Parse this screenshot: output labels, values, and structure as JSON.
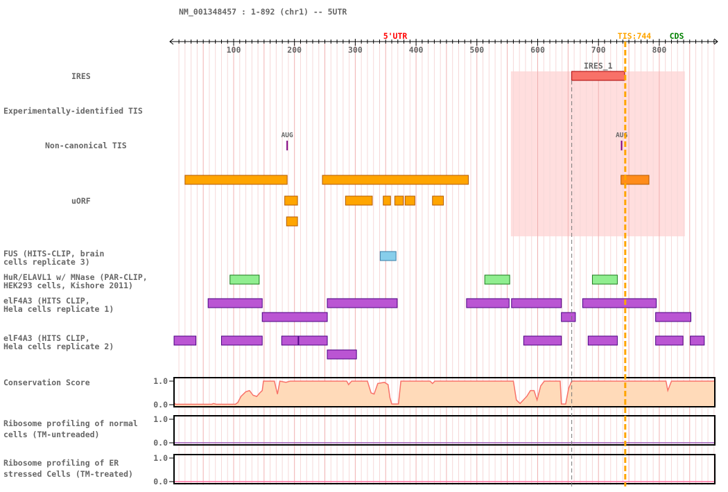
{
  "title": "NM_001348457 : 1-892 (chr1) -- 5UTR",
  "axis": {
    "start": 1,
    "end": 892,
    "tick_labels": [
      100,
      200,
      300,
      400,
      500,
      600,
      700,
      800
    ],
    "minor_step": 10
  },
  "region_labels": {
    "utr": "5'UTR",
    "tis": "TIS:744",
    "cds": "CDS"
  },
  "colors": {
    "utr": "#ff0000",
    "tis": "#ffa500",
    "cds": "#008000",
    "ires": "#f87168",
    "uorf": "#ffa500",
    "uorf_overlap": "#ff8c1a",
    "fus": "#87ceeb",
    "hur": "#90ee90",
    "eif4a3": "#ba55d3",
    "conservation_fill": "#ffdab9",
    "conservation_line": "#f87168",
    "ribo_normal": "#9b59b6",
    "ribo_er": "#ff6f9f"
  },
  "tis_position": 744,
  "ires_start_marker": 656,
  "ires_region": {
    "start": 556,
    "end": 842
  },
  "tracks": [
    {
      "id": "ires",
      "label": "IRES",
      "features": [
        {
          "start": 656,
          "end": 743,
          "name": "IRES_1",
          "row": 0
        }
      ]
    },
    {
      "id": "exp_tis",
      "label": "Experimentally-identified TIS",
      "features": []
    },
    {
      "id": "noncanon",
      "label": "Non-canonical TIS",
      "features": [
        {
          "pos": 188,
          "name": "AUG"
        },
        {
          "pos": 738,
          "name": "AUG"
        }
      ]
    },
    {
      "id": "uorf",
      "label": "uORF",
      "features": [
        {
          "start": 20,
          "end": 188,
          "row": 0
        },
        {
          "start": 246,
          "end": 486,
          "row": 0
        },
        {
          "start": 737,
          "end": 783,
          "row": 0,
          "overlap": true
        },
        {
          "start": 184,
          "end": 205,
          "row": 1
        },
        {
          "start": 284,
          "end": 328,
          "row": 1
        },
        {
          "start": 346,
          "end": 358,
          "row": 1
        },
        {
          "start": 365,
          "end": 379,
          "row": 1
        },
        {
          "start": 382,
          "end": 398,
          "row": 1
        },
        {
          "start": 427,
          "end": 445,
          "row": 1
        },
        {
          "start": 187,
          "end": 205,
          "row": 2
        }
      ]
    },
    {
      "id": "fus",
      "label": "FUS (HITS-CLIP, brain\ncells replicate 3)",
      "features": [
        {
          "start": 341,
          "end": 367,
          "row": 0
        }
      ]
    },
    {
      "id": "hur",
      "label": "HuR/ELAVL1 w/ MNase (PAR-CLIP,\nHEK293 cells, Kishore 2011)",
      "features": [
        {
          "start": 94,
          "end": 142,
          "row": 0
        },
        {
          "start": 513,
          "end": 554,
          "row": 0
        },
        {
          "start": 690,
          "end": 731,
          "row": 0
        }
      ]
    },
    {
      "id": "eif1",
      "label": "elF4A3 (HITS CLIP,\nHela cells replicate 1)",
      "features": [
        {
          "start": 58,
          "end": 147,
          "row": 0
        },
        {
          "start": 254,
          "end": 369,
          "row": 0
        },
        {
          "start": 483,
          "end": 553,
          "row": 0
        },
        {
          "start": 557,
          "end": 639,
          "row": 0
        },
        {
          "start": 674,
          "end": 795,
          "row": 0
        },
        {
          "start": 147,
          "end": 254,
          "row": 1
        },
        {
          "start": 639,
          "end": 662,
          "row": 1
        },
        {
          "start": 794,
          "end": 852,
          "row": 1
        }
      ]
    },
    {
      "id": "eif2",
      "label": "elF4A3 (HITS CLIP,\nHela cells replicate 2)",
      "features": [
        {
          "start": 2,
          "end": 38,
          "row": 0
        },
        {
          "start": 80,
          "end": 147,
          "row": 0
        },
        {
          "start": 179,
          "end": 206,
          "row": 0
        },
        {
          "start": 207,
          "end": 254,
          "row": 0
        },
        {
          "start": 577,
          "end": 639,
          "row": 0
        },
        {
          "start": 683,
          "end": 731,
          "row": 0
        },
        {
          "start": 794,
          "end": 839,
          "row": 0
        },
        {
          "start": 851,
          "end": 874,
          "row": 0
        },
        {
          "start": 254,
          "end": 302,
          "row": 1
        }
      ]
    }
  ],
  "plots": [
    {
      "id": "conservation",
      "label": "Conservation Score",
      "y_ticks": [
        "1.0",
        "0.0"
      ],
      "ylim": [
        0,
        1
      ],
      "points": [
        [
          1,
          0.1
        ],
        [
          4,
          0.02
        ],
        [
          64,
          0.02
        ],
        [
          67,
          0.05
        ],
        [
          71,
          0.02
        ],
        [
          103,
          0.02
        ],
        [
          107,
          0.1
        ],
        [
          112,
          0.35
        ],
        [
          120,
          0.55
        ],
        [
          126,
          0.6
        ],
        [
          132,
          0.4
        ],
        [
          138,
          0.35
        ],
        [
          143,
          0.5
        ],
        [
          147,
          0.6
        ],
        [
          149,
          1
        ],
        [
          167,
          1
        ],
        [
          172,
          0.45
        ],
        [
          176,
          1
        ],
        [
          186,
          0.95
        ],
        [
          193,
          1
        ],
        [
          286,
          1
        ],
        [
          289,
          0.85
        ],
        [
          294,
          1
        ],
        [
          320,
          1
        ],
        [
          326,
          0.5
        ],
        [
          331,
          0.45
        ],
        [
          337,
          0.9
        ],
        [
          348,
          0.95
        ],
        [
          354,
          0.85
        ],
        [
          357,
          0.3
        ],
        [
          360,
          0.03
        ],
        [
          371,
          0.03
        ],
        [
          375,
          1
        ],
        [
          423,
          1
        ],
        [
          427,
          0.9
        ],
        [
          431,
          1
        ],
        [
          560,
          1
        ],
        [
          565,
          0.2
        ],
        [
          571,
          0.05
        ],
        [
          582,
          0.35
        ],
        [
          588,
          0.6
        ],
        [
          594,
          0.6
        ],
        [
          599,
          0.2
        ],
        [
          605,
          0.8
        ],
        [
          611,
          1
        ],
        [
          637,
          1
        ],
        [
          639,
          0.03
        ],
        [
          646,
          0.03
        ],
        [
          651,
          0.7
        ],
        [
          656,
          1
        ],
        [
          811,
          1
        ],
        [
          814,
          0.6
        ],
        [
          820,
          1
        ],
        [
          892,
          1
        ]
      ]
    },
    {
      "id": "ribo_normal",
      "label": "Ribosome profiling of normal\ncells (TM-untreaded)",
      "y_ticks": [
        "1.0",
        "0.0"
      ],
      "ylim": [
        0,
        1
      ],
      "points": [
        [
          1,
          0
        ],
        [
          892,
          0
        ]
      ]
    },
    {
      "id": "ribo_er",
      "label": "Ribosome profiling of ER\nstressed Cells (TM-treated)",
      "y_ticks": [
        "1.0",
        "0.0"
      ],
      "ylim": [
        0,
        1
      ],
      "points": [
        [
          1,
          0
        ],
        [
          892,
          0
        ]
      ]
    }
  ]
}
